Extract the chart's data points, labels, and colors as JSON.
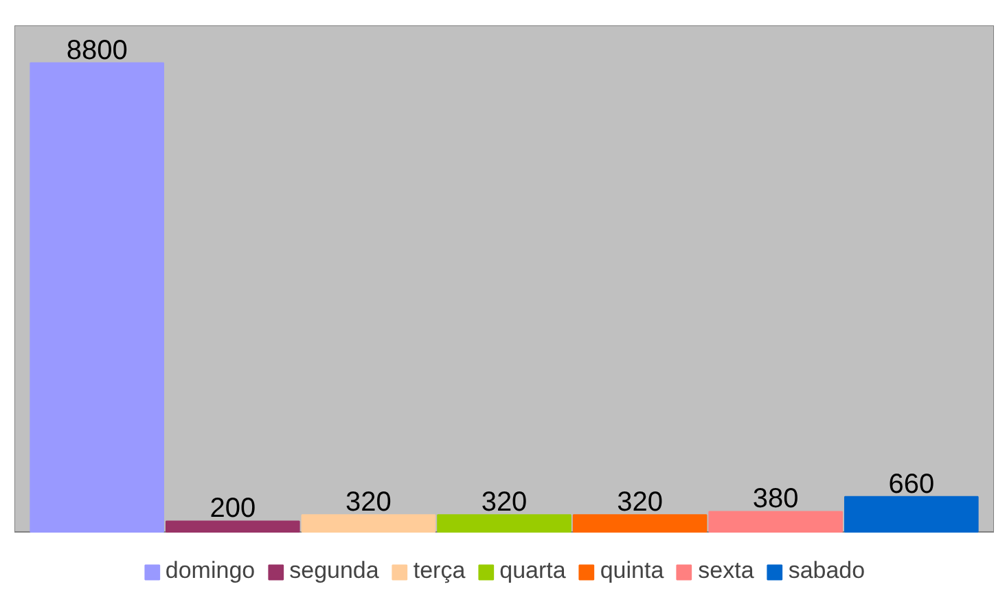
{
  "chart_data": {
    "type": "bar",
    "categories": [
      null
    ],
    "series": [
      {
        "name": "domingo",
        "color": "#9999ff",
        "values": [
          8800
        ]
      },
      {
        "name": "segunda",
        "color": "#993366",
        "values": [
          200
        ]
      },
      {
        "name": "terça",
        "color": "#ffcc99",
        "values": [
          320
        ]
      },
      {
        "name": "quarta",
        "color": "#99cc00",
        "values": [
          320
        ]
      },
      {
        "name": "quinta",
        "color": "#ff6600",
        "values": [
          320
        ]
      },
      {
        "name": "sexta",
        "color": "#ff8080",
        "values": [
          380
        ]
      },
      {
        "name": "sabado",
        "color": "#0066cc",
        "values": [
          660
        ]
      }
    ],
    "data_labels": true,
    "legend": "bottom"
  }
}
